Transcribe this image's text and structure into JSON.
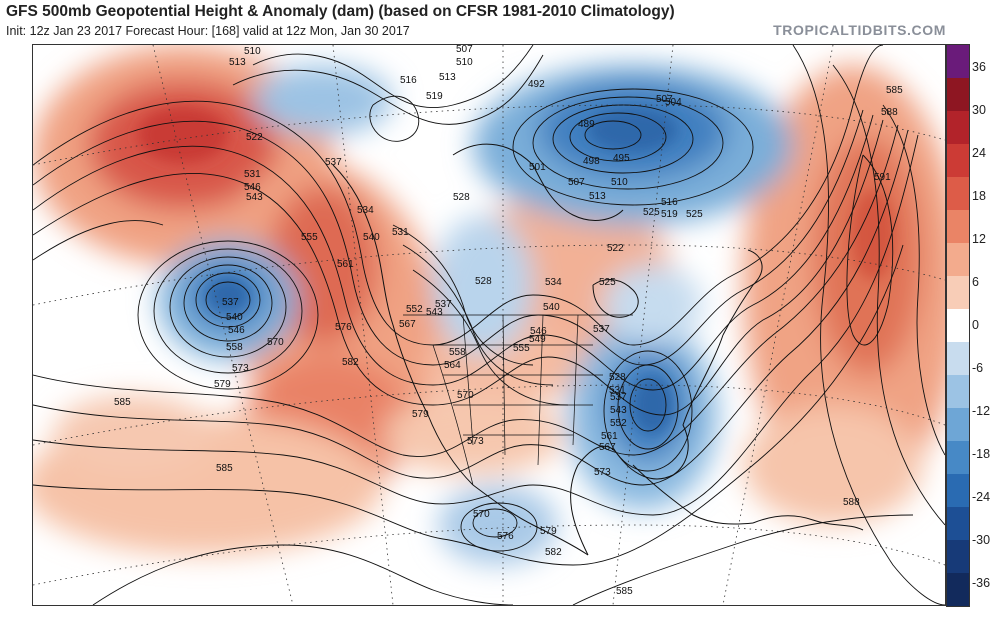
{
  "header": {
    "title": "GFS 500mb Geopotential Height & Anomaly (dam) (based on CFSR 1981-2010 Climatology)",
    "subtitle": "Init: 12z Jan 23 2017   Forecast Hour: [168]   valid at 12z Mon, Jan 30 2017",
    "brand": "TROPICALTIDBITS.COM"
  },
  "colorbar": {
    "ticks": [
      "36",
      "30",
      "24",
      "18",
      "12",
      "6",
      "0",
      "-6",
      "-12",
      "-18",
      "-24",
      "-30",
      "-36"
    ],
    "colors": [
      "#6a1b7a",
      "#8e1622",
      "#b2232a",
      "#cc3b35",
      "#dd5c48",
      "#ea8466",
      "#f3ab8d",
      "#f8cdb7",
      "#ffffff",
      "#c8dcee",
      "#9cc3e4",
      "#6ea6d6",
      "#4789c6",
      "#2a6bb2",
      "#1d4f95",
      "#173a78",
      "#122a5c"
    ]
  },
  "map": {
    "contour_labels": [
      {
        "text": "510"
      },
      {
        "text": "513"
      },
      {
        "text": "507"
      },
      {
        "text": "510"
      },
      {
        "text": "516"
      },
      {
        "text": "513"
      },
      {
        "text": "519"
      },
      {
        "text": "492"
      },
      {
        "text": "507"
      },
      {
        "text": "504"
      },
      {
        "text": "489"
      },
      {
        "text": "495"
      },
      {
        "text": "498"
      },
      {
        "text": "501"
      },
      {
        "text": "507"
      },
      {
        "text": "510"
      },
      {
        "text": "513"
      },
      {
        "text": "516"
      },
      {
        "text": "519"
      },
      {
        "text": "525"
      },
      {
        "text": "522"
      },
      {
        "text": "525"
      },
      {
        "text": "528"
      },
      {
        "text": "522"
      },
      {
        "text": "537"
      },
      {
        "text": "531"
      },
      {
        "text": "546"
      },
      {
        "text": "543"
      },
      {
        "text": "555"
      },
      {
        "text": "561"
      },
      {
        "text": "534"
      },
      {
        "text": "540"
      },
      {
        "text": "531"
      },
      {
        "text": "537"
      },
      {
        "text": "540"
      },
      {
        "text": "546"
      },
      {
        "text": "558"
      },
      {
        "text": "570"
      },
      {
        "text": "573"
      },
      {
        "text": "579"
      },
      {
        "text": "576"
      },
      {
        "text": "582"
      },
      {
        "text": "585"
      },
      {
        "text": "585"
      },
      {
        "text": "567"
      },
      {
        "text": "552"
      },
      {
        "text": "543"
      },
      {
        "text": "537"
      },
      {
        "text": "528"
      },
      {
        "text": "534"
      },
      {
        "text": "540"
      },
      {
        "text": "546"
      },
      {
        "text": "549"
      },
      {
        "text": "555"
      },
      {
        "text": "558"
      },
      {
        "text": "564"
      },
      {
        "text": "570"
      },
      {
        "text": "573"
      },
      {
        "text": "579"
      },
      {
        "text": "528"
      },
      {
        "text": "531"
      },
      {
        "text": "537"
      },
      {
        "text": "543"
      },
      {
        "text": "552"
      },
      {
        "text": "561"
      },
      {
        "text": "567"
      },
      {
        "text": "573"
      },
      {
        "text": "570"
      },
      {
        "text": "576"
      },
      {
        "text": "579"
      },
      {
        "text": "582"
      },
      {
        "text": "585"
      },
      {
        "text": "588"
      },
      {
        "text": "585"
      },
      {
        "text": "588"
      },
      {
        "text": "591"
      },
      {
        "text": "525"
      },
      {
        "text": "537"
      }
    ]
  }
}
